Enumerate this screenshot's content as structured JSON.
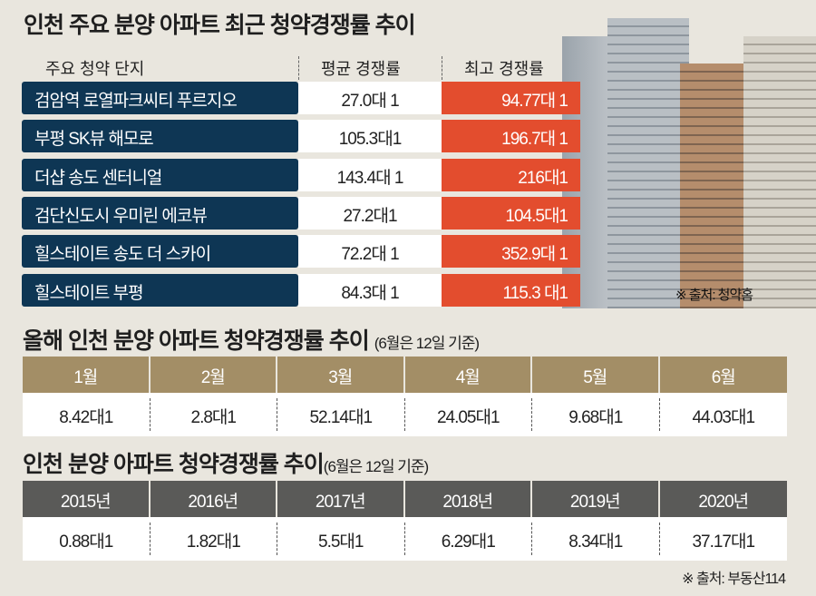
{
  "title1": "인천 주요 분양 아파트 최근 청약경쟁률 추이",
  "table1": {
    "headers": [
      "주요 청약 단지",
      "평균 경쟁률",
      "최고 경쟁률"
    ],
    "rows": [
      {
        "name": "검암역 로열파크씨티 푸르지오",
        "avg": "27.0대 1",
        "max": "94.77대 1"
      },
      {
        "name": "부평 SK뷰 해모로",
        "avg": "105.3대1",
        "max": "196.7대 1"
      },
      {
        "name": "더샵 송도 센터니얼",
        "avg": "143.4대 1",
        "max": "216대1"
      },
      {
        "name": "검단신도시 우미린 에코뷰",
        "avg": "27.2대1",
        "max": "104.5대1"
      },
      {
        "name": "힐스테이트 송도 더 스카이",
        "avg": "72.2대 1",
        "max": "352.9대 1"
      },
      {
        "name": "힐스테이트 부평",
        "avg": "84.3대 1",
        "max": "115.3 대1"
      }
    ],
    "source": "※ 출처: 청약홈"
  },
  "title2": "올해 인천 분양 아파트 청약경쟁률 추이",
  "title2_note": "(6월은 12일 기준)",
  "table2": {
    "headers": [
      "1월",
      "2월",
      "3월",
      "4월",
      "5월",
      "6월"
    ],
    "values": [
      "8.42대1",
      "2.8대1",
      "52.14대1",
      "24.05대1",
      "9.68대1",
      "44.03대1"
    ]
  },
  "title3": "인천 분양 아파트 청약경쟁률 추이",
  "title3_note": "(6월은 12일 기준)",
  "table3": {
    "headers": [
      "2015년",
      "2016년",
      "2017년",
      "2018년",
      "2019년",
      "2020년"
    ],
    "values": [
      "0.88대1",
      "1.82대1",
      "5.5대1",
      "6.29대1",
      "8.34대1",
      "37.17대1"
    ]
  },
  "source2": "※ 출처: 부동산114",
  "colors": {
    "navy": "#0e3654",
    "red": "#e34d2e",
    "tan": "#a38e66",
    "gray": "#5a5a58"
  }
}
